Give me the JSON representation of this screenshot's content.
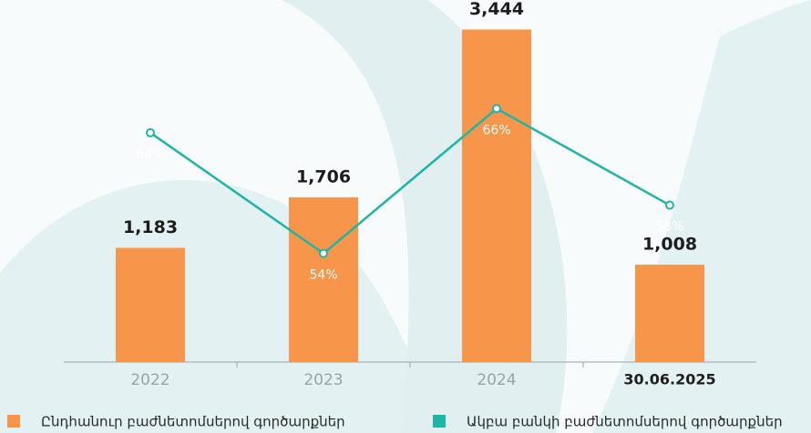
{
  "chart_data": {
    "type": "bar",
    "categories": [
      "2022",
      "2023",
      "2024",
      "30.06.2025"
    ],
    "series": [
      {
        "name": "Ընդհանուր բաժնետոմսերով գործարքներ",
        "color": "#f7964a",
        "values": [
          1183,
          1706,
          3444,
          1008
        ],
        "value_labels": [
          "1,183",
          "1,706",
          "3,444",
          "1,008"
        ]
      },
      {
        "name": "Ակբա բանկի բաժնետոմսերով գործարքներ",
        "color": "#1fb5a5",
        "type": "line",
        "axis": "y2",
        "values": [
          64,
          54,
          66,
          58
        ],
        "value_labels": [
          "64%",
          "54%",
          "66%",
          "58%"
        ]
      }
    ],
    "ylim": [
      0,
      3750
    ],
    "y2lim": [
      45,
      75
    ]
  }
}
